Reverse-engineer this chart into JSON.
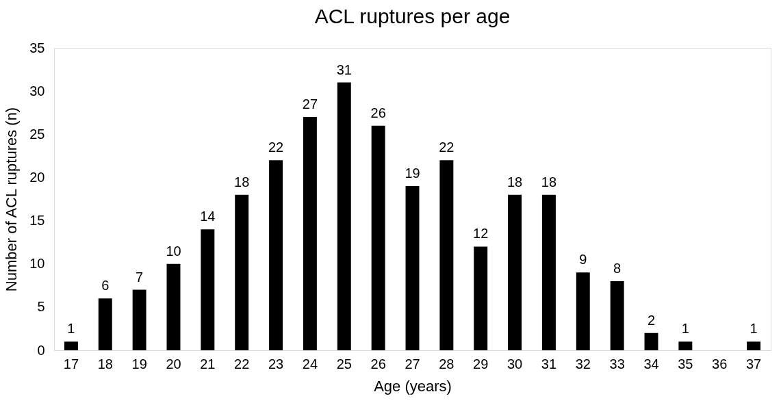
{
  "chart_data": {
    "type": "bar",
    "title": "ACL ruptures per age",
    "xlabel": "Age (years)",
    "ylabel": "Number of ACL ruptures (n)",
    "categories": [
      "17",
      "18",
      "19",
      "20",
      "21",
      "22",
      "23",
      "24",
      "25",
      "26",
      "27",
      "28",
      "29",
      "30",
      "31",
      "32",
      "33",
      "34",
      "35",
      "36",
      "37"
    ],
    "values": [
      1,
      6,
      7,
      10,
      14,
      18,
      22,
      27,
      31,
      26,
      19,
      22,
      12,
      18,
      18,
      9,
      8,
      2,
      1,
      null,
      1
    ],
    "color": "#000000",
    "ylim": [
      0,
      35
    ],
    "yticks": [
      0,
      5,
      10,
      15,
      20,
      25,
      30,
      35
    ],
    "grid": false,
    "data_labels": true
  }
}
